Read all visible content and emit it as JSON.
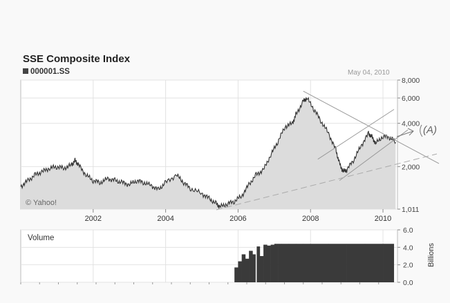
{
  "header": {
    "title": "SSE Composite Index",
    "ticker": "000001.SS",
    "date": "May 04, 2010"
  },
  "price_panel": {
    "watermark": "© Yahoo!",
    "annotation": "(A)"
  },
  "volume_panel": {
    "label": "Volume",
    "unit_label": "Billions"
  },
  "chart_data": [
    {
      "type": "area",
      "title": "SSE Composite Index",
      "scale": "log",
      "ylim": [
        1011,
        8000
      ],
      "yticks": [
        {
          "v": 1011,
          "label": "1,011"
        },
        {
          "v": 2000,
          "label": "2,000"
        },
        {
          "v": 4000,
          "label": "4,000"
        },
        {
          "v": 6000,
          "label": "6,000"
        },
        {
          "v": 8000,
          "label": "8,000"
        }
      ],
      "xticks": [
        {
          "v": 2002,
          "label": "2002"
        },
        {
          "v": 2004,
          "label": "2004"
        },
        {
          "v": 2006,
          "label": "2006"
        },
        {
          "v": 2008,
          "label": "2008"
        },
        {
          "v": 2010,
          "label": "2010"
        }
      ],
      "xlim": [
        2000.0,
        2010.4
      ],
      "grid": true,
      "series": [
        {
          "x": [
            2000.0,
            2000.2,
            2000.4,
            2000.6,
            2000.8,
            2001.0,
            2001.2,
            2001.4,
            2001.5,
            2001.6,
            2001.8,
            2002.0,
            2002.2,
            2002.4,
            2002.6,
            2002.8,
            2003.0,
            2003.2,
            2003.4,
            2003.6,
            2003.8,
            2004.0,
            2004.3,
            2004.5,
            2004.7,
            2005.0,
            2005.2,
            2005.4,
            2005.5,
            2005.7,
            2005.9,
            2006.1,
            2006.3,
            2006.5,
            2006.7,
            2006.9,
            2007.1,
            2007.3,
            2007.5,
            2007.6,
            2007.8,
            2007.9,
            2008.1,
            2008.3,
            2008.5,
            2008.7,
            2008.8,
            2008.9,
            2009.0,
            2009.2,
            2009.4,
            2009.6,
            2009.7,
            2009.8,
            2010.0,
            2010.2,
            2010.35
          ],
          "y": [
            1450,
            1600,
            1750,
            1850,
            1950,
            2000,
            1950,
            2050,
            2200,
            2050,
            1750,
            1600,
            1550,
            1650,
            1600,
            1550,
            1500,
            1600,
            1550,
            1480,
            1380,
            1550,
            1750,
            1550,
            1400,
            1300,
            1200,
            1100,
            1050,
            1100,
            1150,
            1250,
            1500,
            1750,
            1900,
            2400,
            3000,
            3800,
            4000,
            4600,
            5700,
            6000,
            5000,
            4100,
            3400,
            2600,
            2100,
            1850,
            1900,
            2250,
            2800,
            3400,
            3200,
            2900,
            3250,
            3200,
            2950
          ]
        }
      ],
      "trend_lines": [
        "resistance",
        "support",
        "channel",
        "long-term"
      ]
    },
    {
      "type": "bar",
      "title": "Volume",
      "ylabel": "Billions",
      "ylim": [
        0,
        6
      ],
      "yticks": [
        {
          "v": 0,
          "label": "0.0"
        },
        {
          "v": 2,
          "label": "2.0"
        },
        {
          "v": 4,
          "label": "4.0"
        },
        {
          "v": 6,
          "label": "6.0"
        }
      ],
      "series": [
        {
          "name": "Volume",
          "x": [
            2005.9,
            2006.0,
            2006.1,
            2006.2,
            2006.3,
            2006.4,
            2006.5,
            2006.6,
            2006.7,
            2006.8,
            2006.9,
            2007.0,
            2007.1,
            2007.2,
            2007.4,
            2007.6,
            2007.8,
            2008.0,
            2008.5,
            2009.0,
            2009.5,
            2010.0,
            2010.3
          ],
          "values": [
            1.7,
            2.4,
            3.2,
            2.7,
            3.6,
            3.2,
            4.1,
            3.0,
            4.3,
            4.2,
            4.3,
            4.4,
            4.4,
            4.4,
            4.4,
            4.4,
            4.4,
            4.4,
            4.4,
            4.4,
            4.4,
            4.4,
            4.4
          ]
        }
      ]
    }
  ]
}
